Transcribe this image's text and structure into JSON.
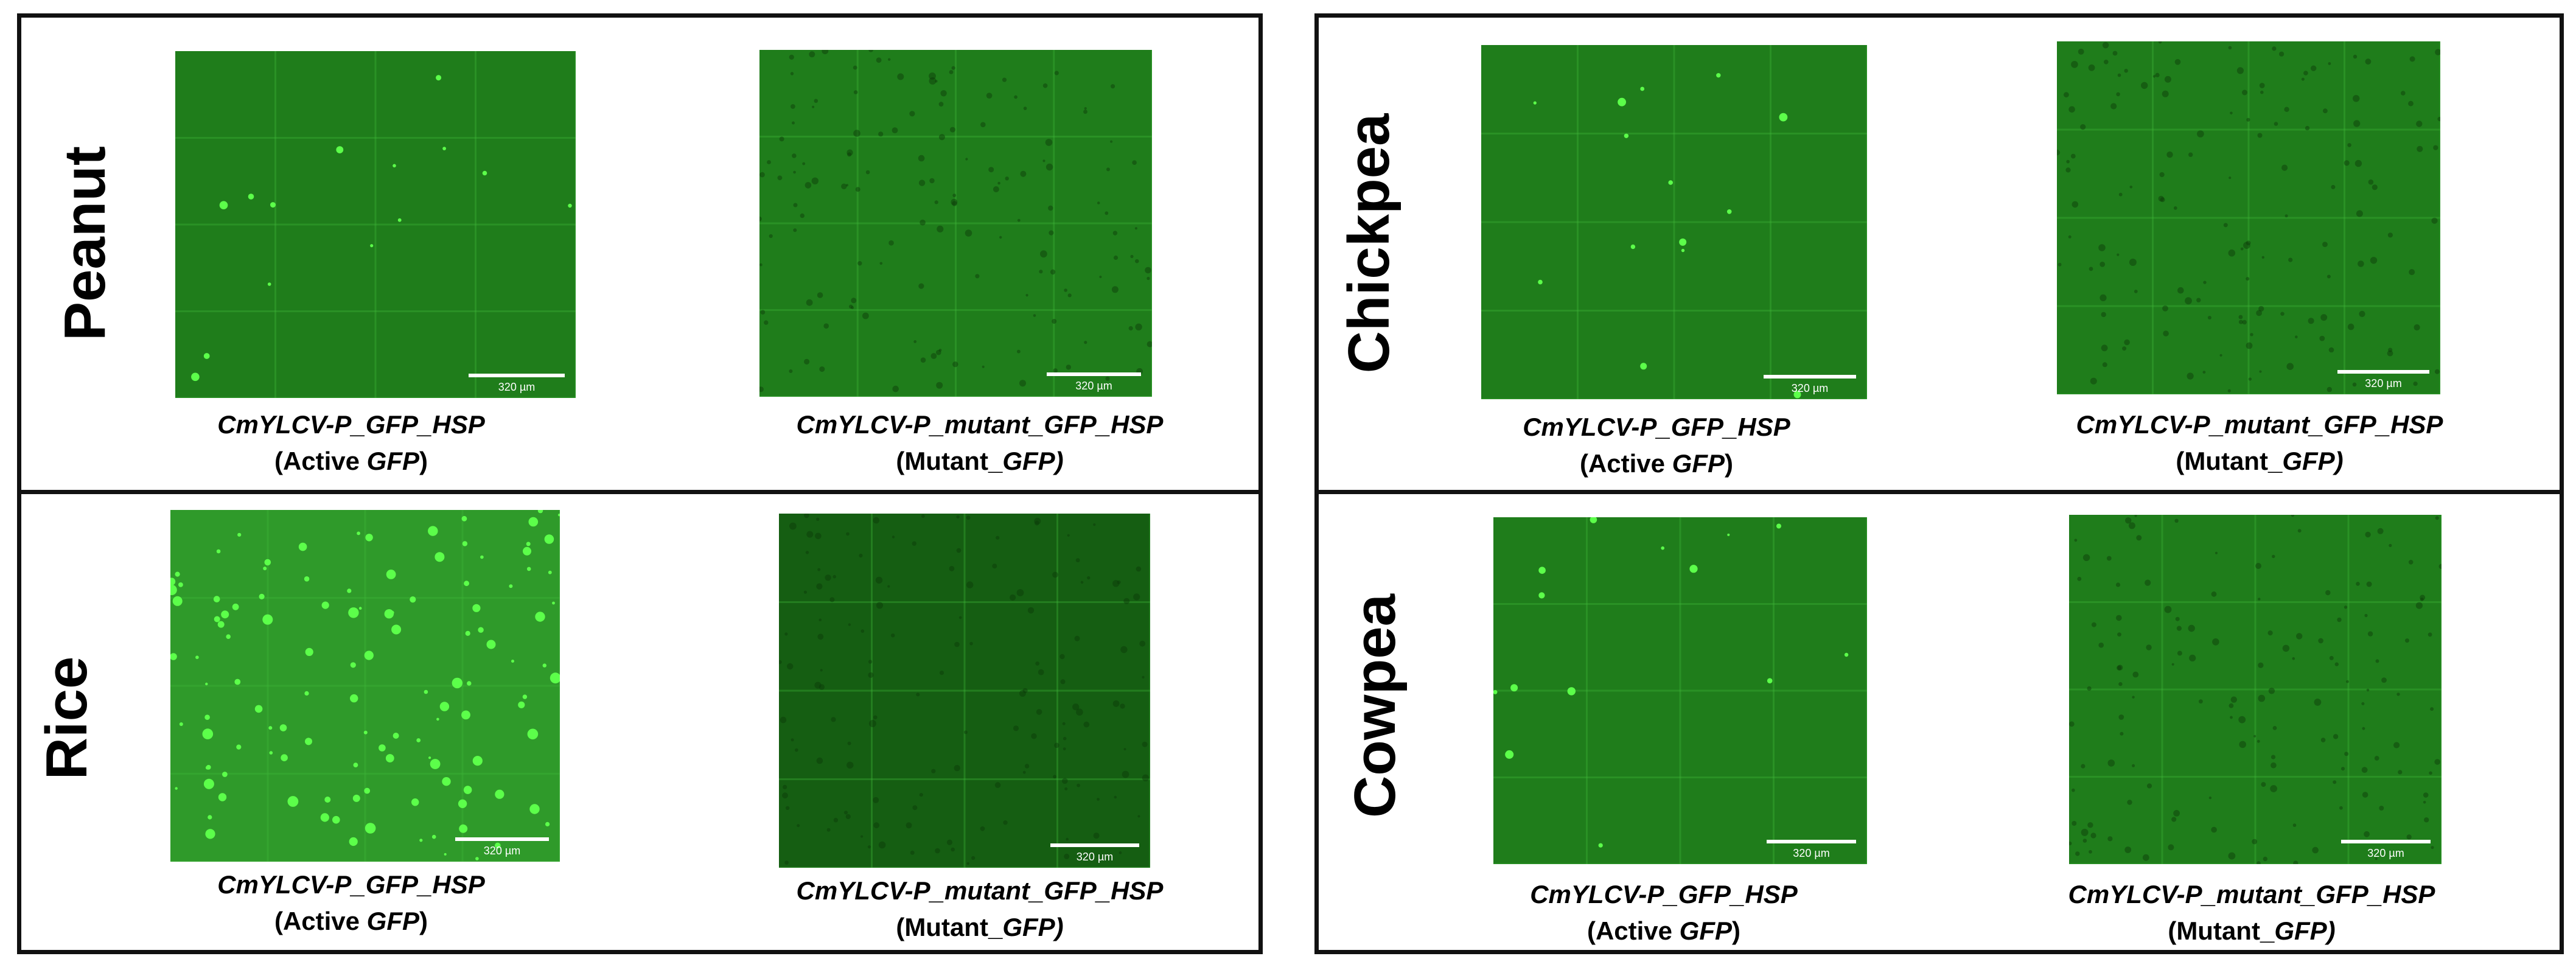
{
  "figure": {
    "species": [
      "Peanut",
      "Rice",
      "Chickpea",
      "Cowpea"
    ],
    "scale_bar_label": "320 µm",
    "active_construct": "CmYLCV-P_GFP_HSP",
    "active_desc_prefix": "(Active ",
    "active_desc_gene": "GFP",
    "active_desc_suffix": ")",
    "mutant_construct": "CmYLCV-P_mutant_GFP_HSP",
    "mutant_desc_prefix": "(Mutant_",
    "mutant_desc_gene": "GFP)",
    "colors": {
      "background_green": "#1f7d1b",
      "active_rice_green": "#2f9a2a",
      "mutant_rice_green": "#155e12",
      "grid_line": "#3fb83a",
      "spot": "#5cff4a",
      "scale_bar": "#ffffff",
      "border": "#111111"
    }
  }
}
